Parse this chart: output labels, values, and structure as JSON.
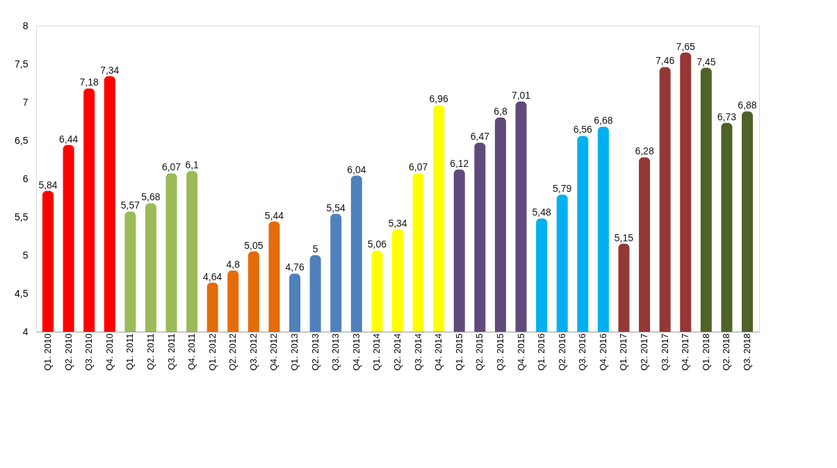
{
  "chart_data": {
    "type": "bar",
    "categories": [
      "Q1. 2010",
      "Q2. 2010",
      "Q3. 2010",
      "Q4. 2010",
      "Q1. 2011",
      "Q2. 2011",
      "Q3. 2011",
      "Q4. 2011",
      "Q1. 2012",
      "Q2. 2012",
      "Q3. 2012",
      "Q4. 2012",
      "Q1. 2013",
      "Q2. 2013",
      "Q3. 2013",
      "Q4. 2013",
      "Q1. 2014",
      "Q2. 2014",
      "Q3. 2014",
      "Q4. 2014",
      "Q1. 2015",
      "Q2. 2015",
      "Q3. 2015",
      "Q4. 2015",
      "Q1. 2016",
      "Q2. 2016",
      "Q3. 2016",
      "Q4. 2016",
      "Q1. 2017",
      "Q2. 2017",
      "Q3. 2017",
      "Q4. 2017",
      "Q1. 2018",
      "Q2. 2018",
      "Q3. 2018"
    ],
    "values": [
      5.84,
      6.44,
      7.18,
      7.34,
      5.57,
      5.68,
      6.07,
      6.1,
      4.64,
      4.8,
      5.05,
      5.44,
      4.76,
      5,
      5.54,
      6.04,
      5.06,
      5.34,
      6.07,
      6.96,
      6.12,
      6.47,
      6.8,
      7.01,
      5.48,
      5.79,
      6.56,
      6.68,
      5.15,
      6.28,
      7.46,
      7.65,
      7.45,
      6.73,
      6.88
    ],
    "value_labels": [
      "5,84",
      "6,44",
      "7,18",
      "7,34",
      "5,57",
      "5,68",
      "6,07",
      "6,1",
      "4,64",
      "4,8",
      "5,05",
      "5,44",
      "4,76",
      "5",
      "5,54",
      "6,04",
      "5,06",
      "5,34",
      "6,07",
      "6,96",
      "6,12",
      "6,47",
      "6,8",
      "7,01",
      "5,48",
      "5,79",
      "6,56",
      "6,68",
      "5,15",
      "6,28",
      "7,46",
      "7,65",
      "7,45",
      "6,73",
      "6,88"
    ],
    "colors": [
      "#ff0000",
      "#ff0000",
      "#ff0000",
      "#ff0000",
      "#9bbb59",
      "#9bbb59",
      "#9bbb59",
      "#9bbb59",
      "#e36c09",
      "#e36c09",
      "#e36c09",
      "#e36c09",
      "#4f81bd",
      "#4f81bd",
      "#4f81bd",
      "#4f81bd",
      "#ffff00",
      "#ffff00",
      "#ffff00",
      "#ffff00",
      "#604a7b",
      "#604a7b",
      "#604a7b",
      "#604a7b",
      "#00b0f0",
      "#00b0f0",
      "#00b0f0",
      "#00b0f0",
      "#953735",
      "#953735",
      "#953735",
      "#953735",
      "#4f6228",
      "#4f6228",
      "#4f6228"
    ],
    "ylim": [
      4,
      8
    ],
    "yticks": [
      4,
      {
        "value": 4.5,
        "label": "4,5"
      },
      5,
      {
        "value": 5.5,
        "label": "5,5"
      },
      6,
      {
        "value": 6.5,
        "label": "6,5"
      },
      7,
      {
        "value": 7.5,
        "label": "7,5"
      },
      8
    ],
    "grid": false
  }
}
